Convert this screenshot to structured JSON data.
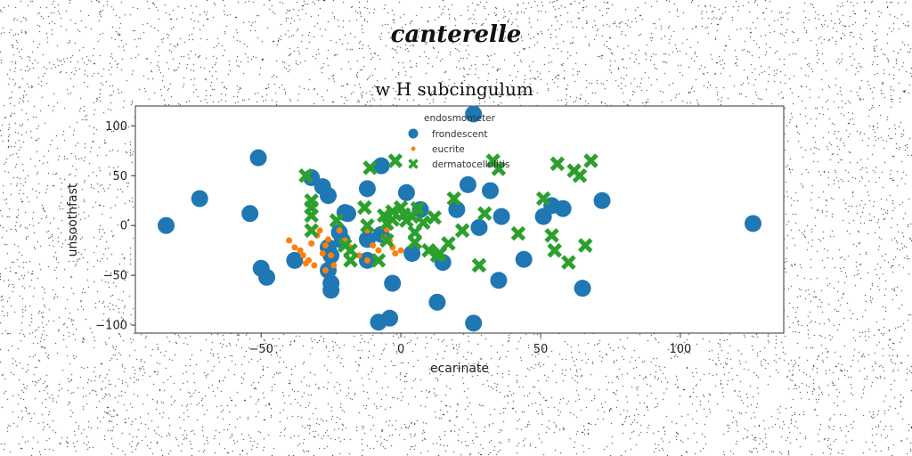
{
  "suptitle": "canterelle",
  "chart_data": {
    "type": "scatter",
    "title": "w H subcingulum",
    "xlabel": "ecarinate",
    "ylabel": "unsoothfast",
    "xlim": [
      -95,
      137
    ],
    "ylim": [
      -108,
      120
    ],
    "xticks": [
      -50,
      0,
      50,
      100
    ],
    "yticks": [
      -100,
      -50,
      0,
      50,
      100
    ],
    "grid": false,
    "legend": {
      "title": "endosmometer",
      "placement": "top-center"
    },
    "series": [
      {
        "name": "frondescent",
        "marker": "circle",
        "color": "#1f77b4",
        "points": [
          [
            -84,
            0
          ],
          [
            -72,
            27
          ],
          [
            -51,
            68
          ],
          [
            -54,
            12
          ],
          [
            -50,
            -43
          ],
          [
            -48,
            -52
          ],
          [
            -38,
            -35
          ],
          [
            -32,
            48
          ],
          [
            -28,
            39
          ],
          [
            -26,
            30
          ],
          [
            -20,
            13
          ],
          [
            -21,
            -15
          ],
          [
            -26,
            -22
          ],
          [
            -25,
            -30
          ],
          [
            -26,
            -45
          ],
          [
            -25,
            -58
          ],
          [
            -25,
            -65
          ],
          [
            -22,
            -7
          ],
          [
            -12,
            37
          ],
          [
            -12,
            -35
          ],
          [
            -7,
            60
          ],
          [
            -8,
            -97
          ],
          [
            -4,
            -93
          ],
          [
            -7,
            -9
          ],
          [
            2,
            33
          ],
          [
            7,
            16
          ],
          [
            4,
            -28
          ],
          [
            -3,
            -58
          ],
          [
            13,
            -77
          ],
          [
            15,
            -37
          ],
          [
            20,
            16
          ],
          [
            24,
            41
          ],
          [
            26,
            -98
          ],
          [
            28,
            -2
          ],
          [
            32,
            35
          ],
          [
            36,
            9
          ],
          [
            35,
            -55
          ],
          [
            44,
            -34
          ],
          [
            51,
            9
          ],
          [
            54,
            20
          ],
          [
            58,
            17
          ],
          [
            65,
            -63
          ],
          [
            72,
            25
          ],
          [
            126,
            2
          ],
          [
            26,
            112
          ],
          [
            -19,
            12
          ],
          [
            -12,
            -14
          ]
        ]
      },
      {
        "name": "eucrite",
        "marker": "dot",
        "color": "#ff7f0e",
        "points": [
          [
            -40,
            -15
          ],
          [
            -38,
            -22
          ],
          [
            -36,
            -25
          ],
          [
            -35,
            -30
          ],
          [
            -33,
            -35
          ],
          [
            -32,
            -18
          ],
          [
            -30,
            -10
          ],
          [
            -29,
            -5
          ],
          [
            -27,
            -20
          ],
          [
            -28,
            -28
          ],
          [
            -26,
            -14
          ],
          [
            -25,
            -30
          ],
          [
            -24,
            -40
          ],
          [
            -22,
            -5
          ],
          [
            -20,
            -15
          ],
          [
            -18,
            -22
          ],
          [
            -15,
            -30
          ],
          [
            -12,
            -35
          ],
          [
            -10,
            -20
          ],
          [
            -8,
            -25
          ],
          [
            -6,
            -12
          ],
          [
            -5,
            -4
          ],
          [
            -3,
            -22
          ],
          [
            -2,
            -28
          ],
          [
            0,
            -25
          ],
          [
            -34,
            -38
          ],
          [
            -31,
            -40
          ],
          [
            -27,
            -45
          ],
          [
            -12,
            -5
          ],
          [
            -4,
            -15
          ]
        ]
      },
      {
        "name": "dermatocellulitis",
        "marker": "x",
        "color": "#2ca02c",
        "points": [
          [
            -34,
            50
          ],
          [
            -32,
            25
          ],
          [
            -32,
            18
          ],
          [
            -32,
            10
          ],
          [
            -32,
            -5
          ],
          [
            -23,
            5
          ],
          [
            -20,
            -20
          ],
          [
            -18,
            -25
          ],
          [
            -18,
            -35
          ],
          [
            -13,
            18
          ],
          [
            -11,
            58
          ],
          [
            -8,
            -35
          ],
          [
            -6,
            10
          ],
          [
            -5,
            2
          ],
          [
            -3,
            14
          ],
          [
            -3,
            6
          ],
          [
            -2,
            65
          ],
          [
            0,
            18
          ],
          [
            1,
            11
          ],
          [
            2,
            5
          ],
          [
            4,
            9
          ],
          [
            5,
            -7
          ],
          [
            5,
            -17
          ],
          [
            6,
            17
          ],
          [
            8,
            3
          ],
          [
            10,
            -25
          ],
          [
            12,
            8
          ],
          [
            13,
            -30
          ],
          [
            14,
            -28
          ],
          [
            17,
            -18
          ],
          [
            19,
            27
          ],
          [
            22,
            -5
          ],
          [
            28,
            -40
          ],
          [
            30,
            12
          ],
          [
            33,
            65
          ],
          [
            35,
            57
          ],
          [
            42,
            -8
          ],
          [
            51,
            27
          ],
          [
            54,
            -10
          ],
          [
            55,
            -25
          ],
          [
            56,
            62
          ],
          [
            60,
            -37
          ],
          [
            62,
            55
          ],
          [
            64,
            50
          ],
          [
            66,
            -20
          ],
          [
            68,
            65
          ],
          [
            -12,
            0
          ],
          [
            -5,
            -15
          ]
        ]
      }
    ]
  }
}
